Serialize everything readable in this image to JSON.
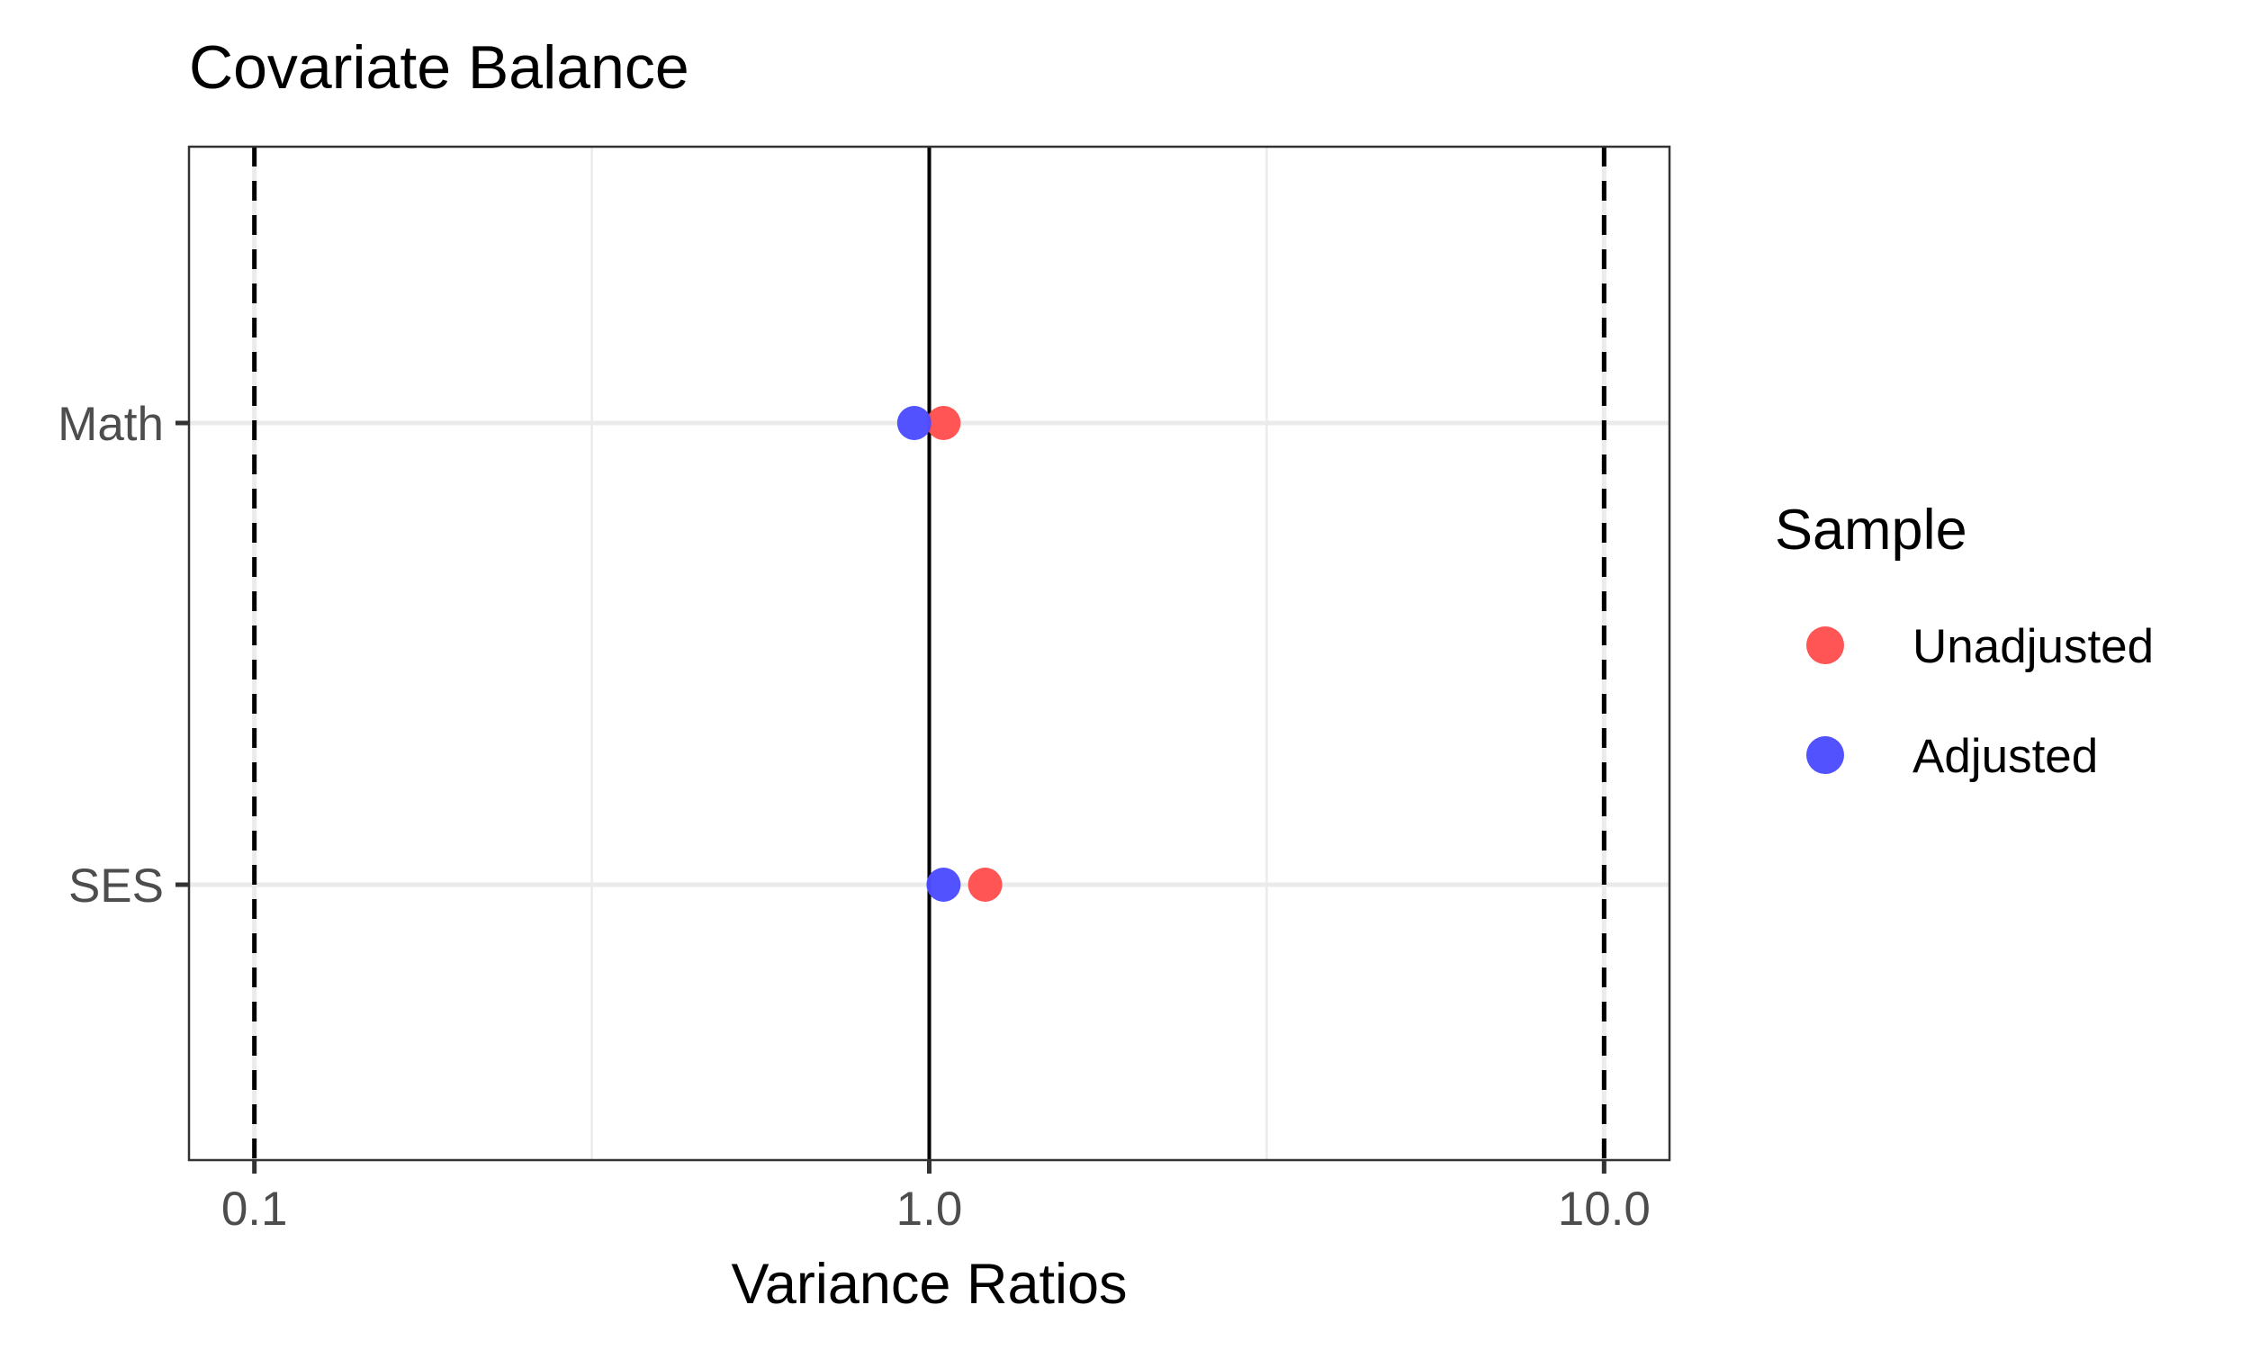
{
  "chart_data": {
    "type": "scatter",
    "title": "Covariate Balance",
    "xlabel": "Variance Ratios",
    "ylabel": "",
    "x_scale": "log10",
    "xlim": [
      0.08,
      12.5
    ],
    "x_ticks": [
      0.1,
      1.0,
      10.0
    ],
    "x_tick_labels": [
      "0.1",
      "1.0",
      "10.0"
    ],
    "categories": [
      "Math",
      "SES"
    ],
    "reference_lines": {
      "solid": [
        1.0
      ],
      "dashed": [
        0.1,
        10.0
      ]
    },
    "series": [
      {
        "name": "Unadjusted",
        "color": "#ff5050",
        "values": [
          1.05,
          1.21
        ]
      },
      {
        "name": "Adjusted",
        "color": "#4c4cff",
        "values": [
          0.95,
          1.05
        ]
      }
    ],
    "grid": true,
    "legend": {
      "title": "Sample",
      "position": "right"
    }
  }
}
